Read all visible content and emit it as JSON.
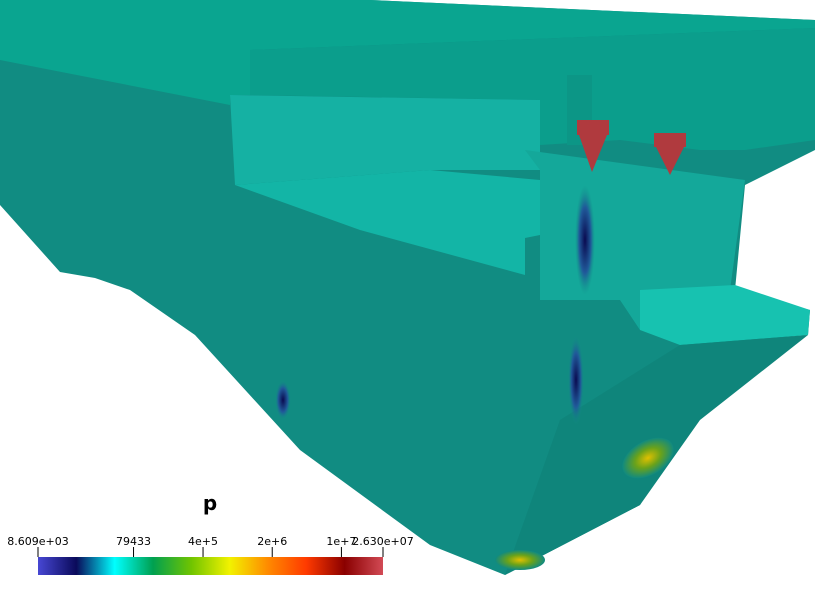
{
  "colorbar": {
    "title": "p",
    "scale": "log",
    "colormap": [
      "#4747d4",
      "#0a0a5a",
      "#00ffff",
      "#00a050",
      "#70c400",
      "#f2f200",
      "#ff8a00",
      "#ff3a00",
      "#8a0000",
      "#d24a55"
    ],
    "range": [
      {
        "value": 8609,
        "label": "8.609e+03"
      },
      {
        "value": 26300000,
        "label": "2.630e+07"
      }
    ],
    "ticks": [
      {
        "value": 8609,
        "label": "8.609e+03"
      },
      79433,
      {
        "value": 400000,
        "label": "4e+5"
      },
      {
        "value": 2000000,
        "label": "2e+6"
      },
      {
        "value": 10000000,
        "label": "1e+7"
      },
      {
        "value": 26300000,
        "label": "2.630e+07"
      }
    ]
  }
}
